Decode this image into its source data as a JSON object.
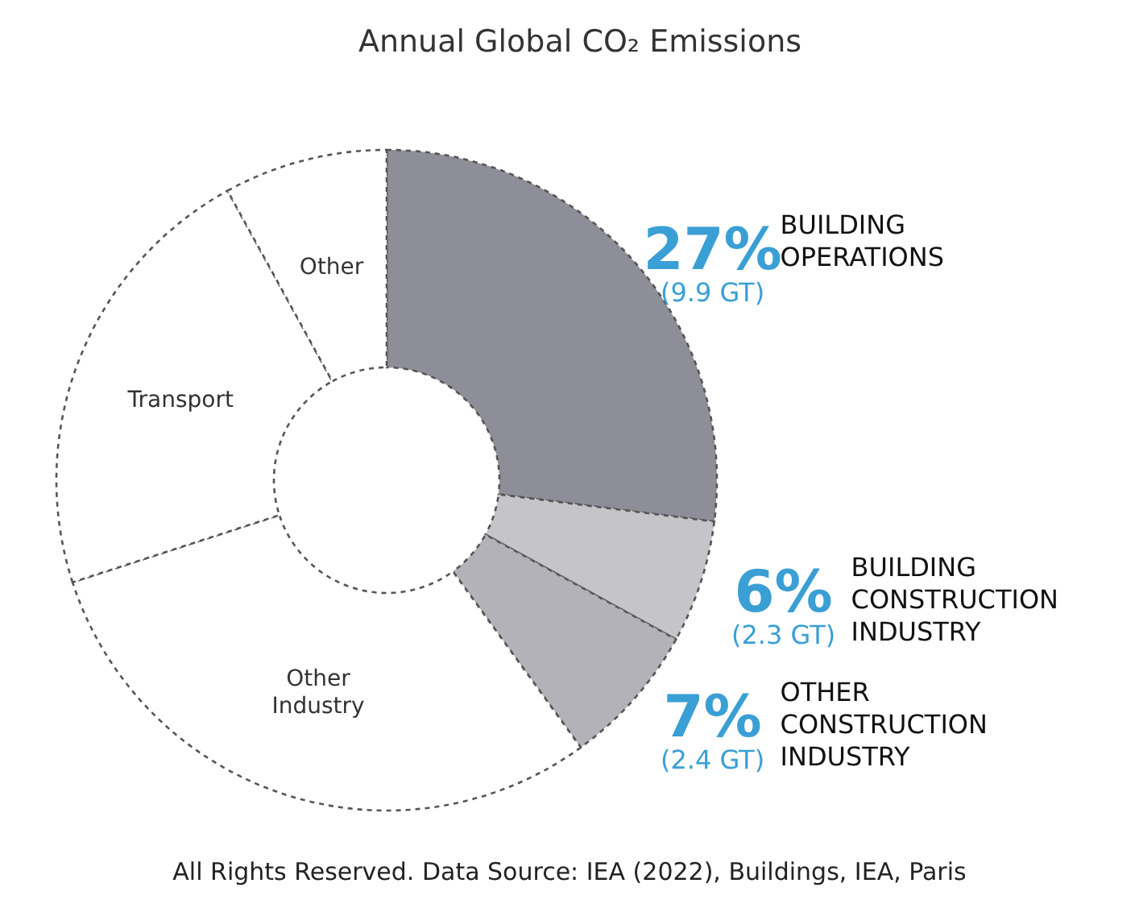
{
  "chart_data": {
    "type": "donut",
    "title": "Annual Global CO₂ Emissions",
    "categories": [
      "BUILDING OPERATIONS",
      "BUILDING CONSTRUCTION INDUSTRY",
      "OTHER CONSTRUCTION INDUSTRY",
      "Other Industry",
      "Transport",
      "Other"
    ],
    "values": [
      27,
      6,
      7,
      30,
      22,
      8
    ],
    "colors": [
      "#8e8e98",
      "#c4c4c9",
      "#b2b2b8",
      "#ffffff",
      "#ffffff",
      "#ffffff"
    ],
    "value_labels": [
      "27%",
      "6%",
      "7%",
      null,
      null,
      null
    ],
    "annotations": [
      {
        "text": "(9.9 GT)",
        "x": "BUILDING OPERATIONS"
      },
      {
        "text": "(2.3 GT)",
        "x": "BUILDING CONSTRUCTION INDUSTRY"
      },
      {
        "text": "(2.4 GT)",
        "x": "OTHER CONSTRUCTION INDUSTRY"
      },
      "All Rights Reserved. Data Source: IEA (2022), Buildings, IEA, Paris"
    ]
  }
}
